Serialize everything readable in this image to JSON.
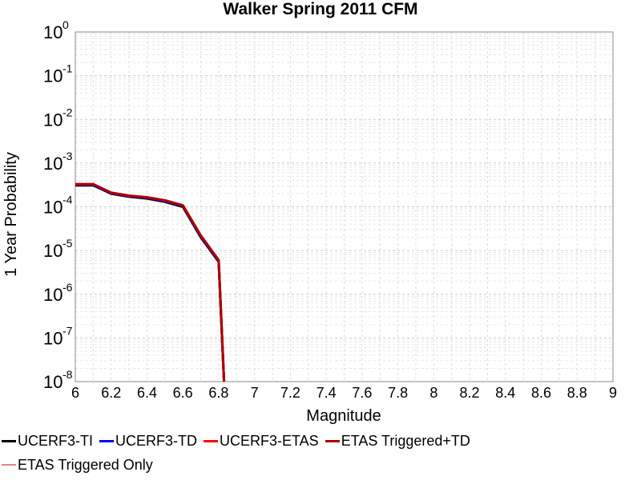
{
  "chart_data": {
    "type": "line",
    "title": "Walker Spring 2011 CFM",
    "xlabel": "Magnitude",
    "ylabel": "1 Year Probability",
    "xlim": [
      6,
      9
    ],
    "ylim": [
      1e-08,
      1
    ],
    "yscale": "log",
    "grid": true,
    "legend_position": "bottom",
    "x_ticks": [
      "6",
      "6.2",
      "6.4",
      "6.6",
      "6.8",
      "7",
      "7.2",
      "7.4",
      "7.6",
      "7.8",
      "8",
      "8.2",
      "8.4",
      "8.6",
      "8.8",
      "9"
    ],
    "y_ticks": [
      {
        "base": "10",
        "exp": "0"
      },
      {
        "base": "10",
        "exp": "-1"
      },
      {
        "base": "10",
        "exp": "-2"
      },
      {
        "base": "10",
        "exp": "-3"
      },
      {
        "base": "10",
        "exp": "-4"
      },
      {
        "base": "10",
        "exp": "-5"
      },
      {
        "base": "10",
        "exp": "-6"
      },
      {
        "base": "10",
        "exp": "-7"
      },
      {
        "base": "10",
        "exp": "-8"
      }
    ],
    "series": [
      {
        "name": "UCERF3-TI",
        "color": "#000000",
        "x": [
          6.0,
          6.1,
          6.2,
          6.3,
          6.4,
          6.5,
          6.6,
          6.7,
          6.8,
          6.83
        ],
        "y": [
          0.00031,
          0.00031,
          0.0002,
          0.00017,
          0.000155,
          0.00013,
          0.0001,
          2e-05,
          5.5e-06,
          1e-08
        ]
      },
      {
        "name": "UCERF3-TD",
        "color": "#0000ff",
        "x": [
          6.0,
          6.1,
          6.2,
          6.3,
          6.4,
          6.5,
          6.6,
          6.7,
          6.8,
          6.83
        ],
        "y": [
          0.00032,
          0.00032,
          0.000205,
          0.000175,
          0.00016,
          0.000135,
          0.000105,
          2.1e-05,
          5.8e-06,
          1e-08
        ]
      },
      {
        "name": "UCERF3-ETAS",
        "color": "#ff0000",
        "x": [
          6.0,
          6.1,
          6.2,
          6.3,
          6.4,
          6.5,
          6.6,
          6.7,
          6.8,
          6.83
        ],
        "y": [
          0.00033,
          0.00033,
          0.00021,
          0.00018,
          0.000165,
          0.00014,
          0.000108,
          2.2e-05,
          6e-06,
          1e-08
        ]
      },
      {
        "name": "ETAS Triggered+TD",
        "color": "#aa0000",
        "x": [
          6.0,
          6.1,
          6.2,
          6.3,
          6.4,
          6.5,
          6.6,
          6.7,
          6.8,
          6.83
        ],
        "y": [
          0.00033,
          0.00033,
          0.00021,
          0.00018,
          0.000165,
          0.00014,
          0.000108,
          2.2e-05,
          6e-06,
          1e-08
        ]
      },
      {
        "name": "ETAS Triggered Only",
        "color": "#f08080",
        "x": [],
        "y": []
      }
    ]
  }
}
